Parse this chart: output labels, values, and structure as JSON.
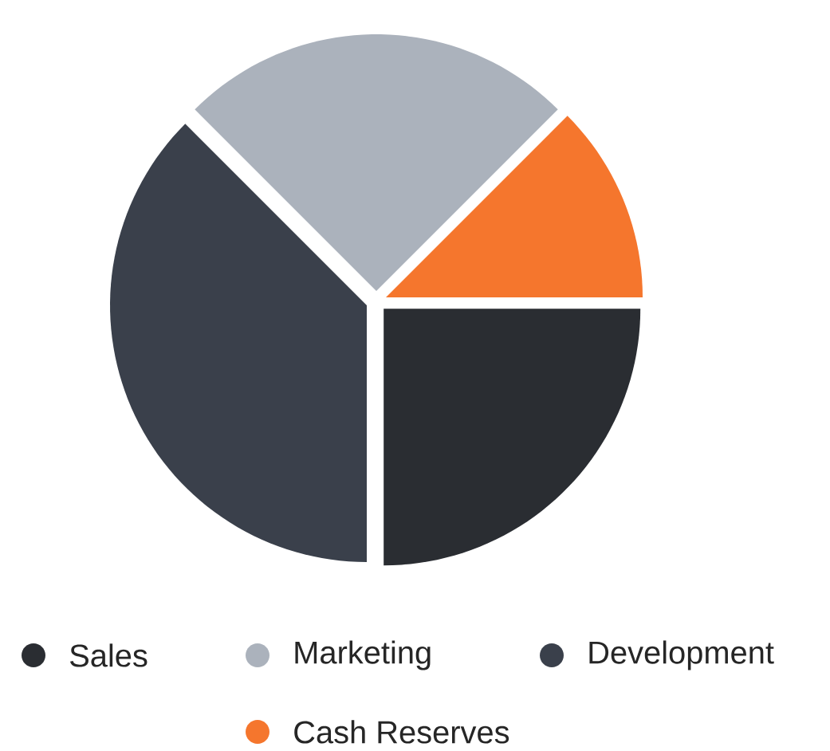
{
  "chart_data": {
    "type": "pie",
    "categories": [
      "Sales",
      "Marketing",
      "Development",
      "Cash Reserves"
    ],
    "values": [
      25,
      25,
      37.5,
      12.5
    ],
    "colors": [
      "#2a2d32",
      "#abb2bc",
      "#3a404b",
      "#f5762d"
    ],
    "legend": "bottom"
  }
}
